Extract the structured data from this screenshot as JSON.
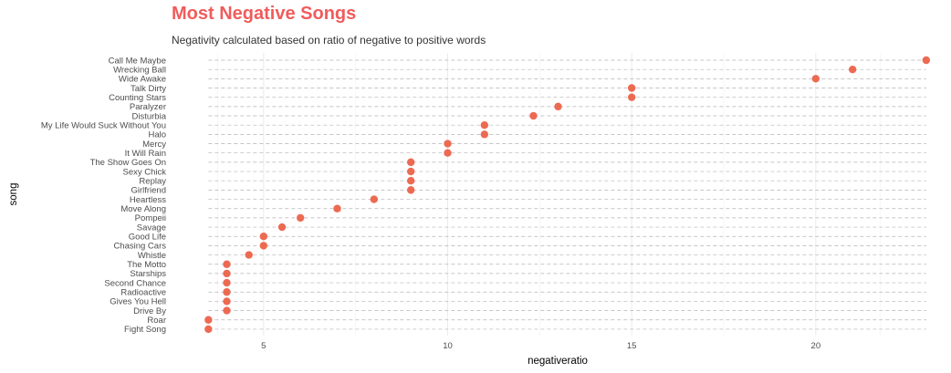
{
  "chart_data": {
    "type": "scatter",
    "title": "Most Negative Songs",
    "subtitle": "Negativity calculated based on ratio of negative to positive words",
    "xlabel": "negativeratio",
    "ylabel": "song",
    "xlim": [
      2.5,
      23.5
    ],
    "x_ticks": [
      5,
      10,
      15,
      20
    ],
    "x_tick_labels": [
      "5",
      "10",
      "15",
      "20"
    ],
    "grid": "on",
    "point_color": "#ed6a52",
    "categories": [
      "Call Me Maybe",
      "Wrecking Ball",
      "Wide Awake",
      "Talk Dirty",
      "Counting Stars",
      "Paralyzer",
      "Disturbia",
      "My Life Would Suck Without You",
      "Halo",
      "Mercy",
      "It Will Rain",
      "The Show Goes On",
      "Sexy Chick",
      "Replay",
      "Girlfriend",
      "Heartless",
      "Move Along",
      "Pompeii",
      "Savage",
      "Good Life",
      "Chasing Cars",
      "Whistle",
      "The Motto",
      "Starships",
      "Second Chance",
      "Radioactive",
      "Gives You Hell",
      "Drive By",
      "Roar",
      "Fight Song"
    ],
    "values": [
      23,
      21,
      20,
      15,
      15,
      13,
      12.33,
      11,
      11,
      10,
      10,
      9,
      9,
      9,
      9,
      8,
      7,
      6,
      5.5,
      5,
      5,
      4.6,
      4,
      4,
      4,
      4,
      4,
      4,
      3.5,
      3.5
    ]
  }
}
